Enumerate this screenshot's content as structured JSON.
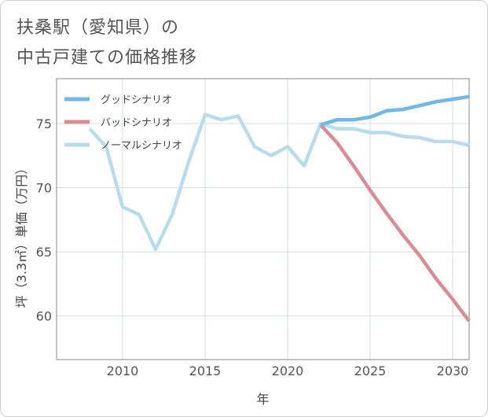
{
  "title_lines": [
    "扶桑駅（愛知県）の",
    "中古戸建ての価格推移"
  ],
  "chart_data": {
    "type": "line",
    "title": "扶桑駅（愛知県）の中古戸建ての価格推移",
    "xlabel": "年",
    "ylabel": "坪（3.3㎡）単価（万円）",
    "xlim": [
      2006,
      2031
    ],
    "ylim": [
      56.6,
      78.5
    ],
    "xticks": [
      2010,
      2015,
      2020,
      2025,
      2030
    ],
    "yticks": [
      60,
      65,
      70,
      75
    ],
    "grid": true,
    "legend_position": "top-left",
    "series": [
      {
        "name": "グッドシナリオ",
        "color": "#6bb9ef",
        "x": [
          2022,
          2023,
          2024,
          2025,
          2026,
          2027,
          2028,
          2029,
          2030,
          2031
        ],
        "y": [
          74.9,
          75.3,
          75.3,
          75.5,
          76.0,
          76.1,
          76.4,
          76.7,
          76.9,
          77.1
        ]
      },
      {
        "name": "バッドシナリオ",
        "color": "#dc8a94",
        "x": [
          2022,
          2023,
          2024,
          2025,
          2026,
          2027,
          2028,
          2029,
          2030,
          2031
        ],
        "y": [
          74.9,
          73.5,
          71.7,
          69.8,
          68.0,
          66.3,
          64.7,
          62.9,
          61.3,
          59.6
        ]
      },
      {
        "name": "ノーマルシナリオ",
        "color": "#b7dcec",
        "x": [
          2008,
          2009,
          2010,
          2011,
          2012,
          2013,
          2014,
          2015,
          2016,
          2017,
          2018,
          2019,
          2020,
          2021,
          2022,
          2023,
          2024,
          2025,
          2026,
          2027,
          2028,
          2029,
          2030,
          2031
        ],
        "y": [
          74.6,
          73.2,
          68.5,
          67.9,
          65.2,
          67.9,
          72.0,
          75.7,
          75.3,
          75.6,
          73.2,
          72.5,
          73.2,
          71.7,
          75.0,
          74.6,
          74.6,
          74.3,
          74.3,
          74.0,
          73.9,
          73.6,
          73.6,
          73.3
        ]
      }
    ]
  }
}
